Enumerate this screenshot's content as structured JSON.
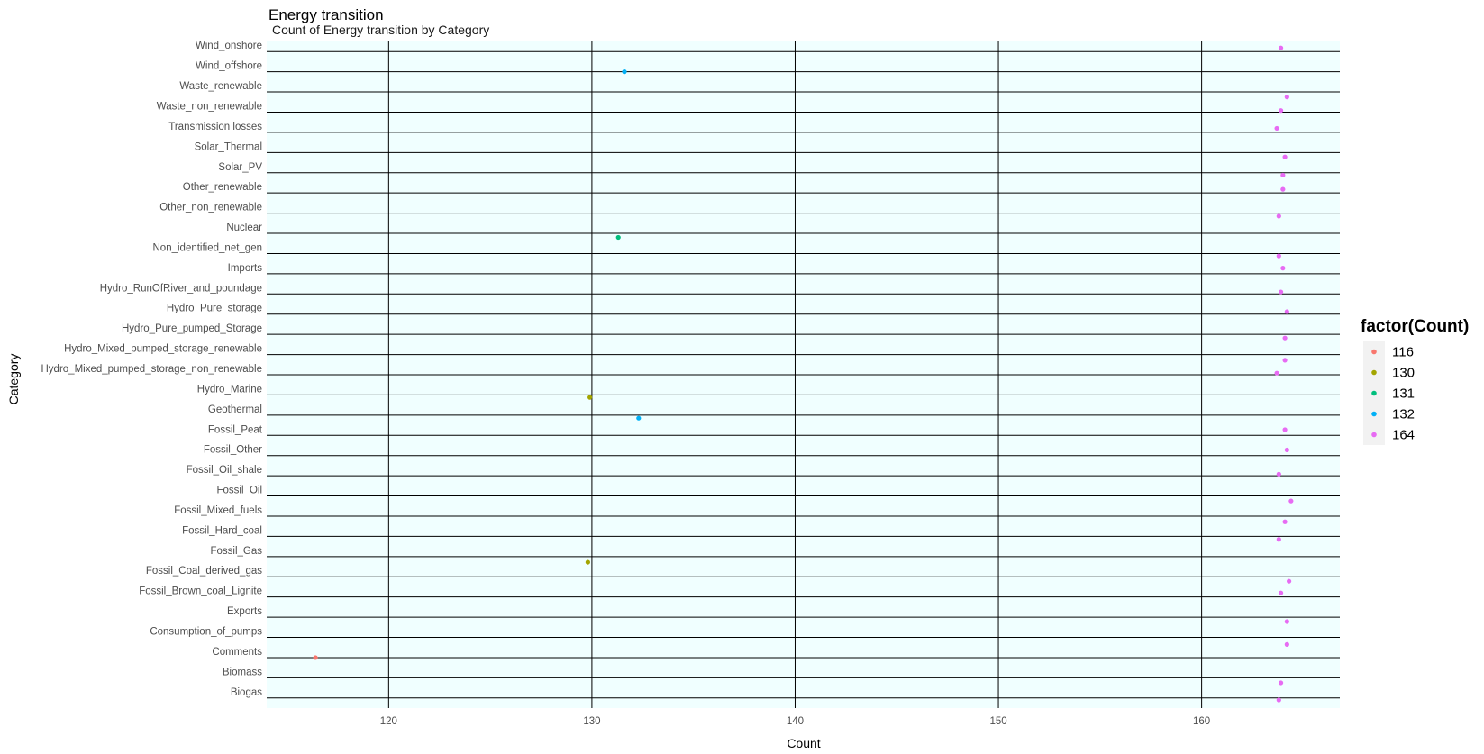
{
  "chart_data": {
    "type": "scatter",
    "title": "Energy transition",
    "subtitle": "Count of Energy transition by Category",
    "xlabel": "Count",
    "ylabel": "Category",
    "xlim": [
      114,
      166.8
    ],
    "xticks": [
      120,
      130,
      140,
      150,
      160
    ],
    "grid": true,
    "panel_background": "#f0ffff",
    "grid_color": "#000000",
    "legend": {
      "title": "factor(Count)",
      "placement": "right",
      "entries": [
        {
          "label": "116",
          "color": "#F8766D"
        },
        {
          "label": "130",
          "color": "#A3A500"
        },
        {
          "label": "131",
          "color": "#00BF7D"
        },
        {
          "label": "132",
          "color": "#00B0F6"
        },
        {
          "label": "164",
          "color": "#E76BF3"
        }
      ]
    },
    "categories": [
      "Wind_onshore",
      "Wind_offshore",
      "Waste_renewable",
      "Waste_non_renewable",
      "Transmission losses",
      "Solar_Thermal",
      "Solar_PV",
      "Other_renewable",
      "Other_non_renewable",
      "Nuclear",
      "Non_identified_net_gen",
      "Imports",
      "Hydro_RunOfRiver_and_poundage",
      "Hydro_Pure_storage",
      "Hydro_Pure_pumped_Storage",
      "Hydro_Mixed_pumped_storage_renewable",
      "Hydro_Mixed_pumped_storage_non_renewable",
      "Hydro_Marine",
      "Geothermal",
      "Fossil_Peat",
      "Fossil_Other",
      "Fossil_Oil_shale",
      "Fossil_Oil",
      "Fossil_Mixed_fuels",
      "Fossil_Hard_coal",
      "Fossil_Gas",
      "Fossil_Coal_derived_gas",
      "Fossil_Brown_coal_Lignite",
      "Exports",
      "Consumption_of_pumps",
      "Comments",
      "Biomass",
      "Biogas"
    ],
    "points": [
      {
        "category": "Wind_onshore",
        "x": 163.9,
        "y_jitter": 0.18,
        "group": "164"
      },
      {
        "category": "Wind_offshore",
        "x": 131.6,
        "y_jitter": 0.0,
        "group": "132"
      },
      {
        "category": "Waste_renewable",
        "x": 164.2,
        "y_jitter": -0.25,
        "group": "164"
      },
      {
        "category": "Waste_non_renewable",
        "x": 163.9,
        "y_jitter": 0.08,
        "group": "164"
      },
      {
        "category": "Transmission losses",
        "x": 163.7,
        "y_jitter": 0.2,
        "group": "164"
      },
      {
        "category": "Solar_Thermal",
        "x": 164.1,
        "y_jitter": -0.22,
        "group": "164"
      },
      {
        "category": "Solar_PV",
        "x": 164.0,
        "y_jitter": -0.12,
        "group": "164"
      },
      {
        "category": "Other_renewable",
        "x": 164.0,
        "y_jitter": 0.18,
        "group": "164"
      },
      {
        "category": "Other_non_renewable",
        "x": 163.8,
        "y_jitter": -0.15,
        "group": "164"
      },
      {
        "category": "Nuclear",
        "x": 131.3,
        "y_jitter": -0.2,
        "group": "131"
      },
      {
        "category": "Non_identified_net_gen",
        "x": 163.8,
        "y_jitter": -0.12,
        "group": "164"
      },
      {
        "category": "Imports",
        "x": 164.0,
        "y_jitter": 0.28,
        "group": "164"
      },
      {
        "category": "Hydro_RunOfRiver_and_poundage",
        "x": 163.9,
        "y_jitter": 0.1,
        "group": "164"
      },
      {
        "category": "Hydro_Pure_storage",
        "x": 164.2,
        "y_jitter": 0.12,
        "group": "164"
      },
      {
        "category": "Hydro_Pure_pumped_Storage",
        "x": 164.1,
        "y_jitter": -0.18,
        "group": "164"
      },
      {
        "category": "Hydro_Mixed_pumped_storage_renewable",
        "x": 164.1,
        "y_jitter": -0.28,
        "group": "164"
      },
      {
        "category": "Hydro_Mixed_pumped_storage_non_renewable",
        "x": 163.7,
        "y_jitter": 0.08,
        "group": "164"
      },
      {
        "category": "Hydro_Marine",
        "x": 129.9,
        "y_jitter": -0.12,
        "group": "130"
      },
      {
        "category": "Geothermal",
        "x": 132.3,
        "y_jitter": -0.15,
        "group": "132"
      },
      {
        "category": "Fossil_Peat",
        "x": 164.1,
        "y_jitter": 0.28,
        "group": "164"
      },
      {
        "category": "Fossil_Other",
        "x": 164.2,
        "y_jitter": 0.28,
        "group": "164"
      },
      {
        "category": "Fossil_Oil_shale",
        "x": 163.8,
        "y_jitter": 0.08,
        "group": "164"
      },
      {
        "category": "Fossil_Oil",
        "x": 164.4,
        "y_jitter": -0.25,
        "group": "164"
      },
      {
        "category": "Fossil_Mixed_fuels",
        "x": 164.1,
        "y_jitter": -0.28,
        "group": "164"
      },
      {
        "category": "Fossil_Hard_coal",
        "x": 163.8,
        "y_jitter": -0.15,
        "group": "164"
      },
      {
        "category": "Fossil_Gas",
        "x": 129.8,
        "y_jitter": -0.28,
        "group": "130"
      },
      {
        "category": "Fossil_Coal_derived_gas",
        "x": 164.3,
        "y_jitter": -0.22,
        "group": "164"
      },
      {
        "category": "Fossil_Brown_coal_Lignite",
        "x": 163.9,
        "y_jitter": 0.2,
        "group": "164"
      },
      {
        "category": "Exports",
        "x": 164.2,
        "y_jitter": -0.22,
        "group": "164"
      },
      {
        "category": "Consumption_of_pumps",
        "x": 164.2,
        "y_jitter": -0.35,
        "group": "164"
      },
      {
        "category": "Comments",
        "x": 116.4,
        "y_jitter": 0.0,
        "group": "116"
      },
      {
        "category": "Biomass",
        "x": 163.9,
        "y_jitter": -0.25,
        "group": "164"
      },
      {
        "category": "Biogas",
        "x": 163.8,
        "y_jitter": -0.1,
        "group": "164"
      }
    ]
  }
}
